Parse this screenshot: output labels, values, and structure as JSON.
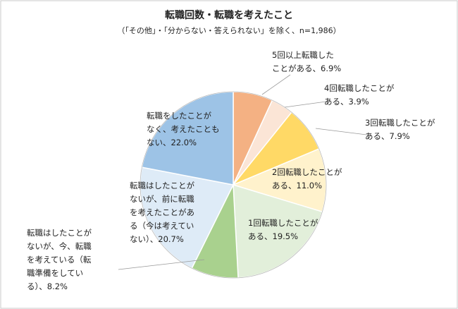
{
  "chart_data": {
    "type": "pie",
    "title": "転職回数・転職を考えたこと",
    "subtitle": "（「その他」・「分からない・答えられない」を除く、n=1,986）",
    "categories": [
      [
        "5回以上転職した",
        "ことがある、"
      ],
      [
        "4回転職したことが",
        "ある、"
      ],
      [
        "3回転職したことが",
        "ある、"
      ],
      [
        "2回転職したことが",
        "ある、"
      ],
      [
        "1回転職したことが",
        "ある、"
      ],
      [
        "転職はしたことが",
        "ないが、今、転職",
        "を考えている（転",
        "職準備をしてい",
        "る）、"
      ],
      [
        "転職はしたことが",
        "ないが、前に転職",
        "を考えたことがあ",
        "る（今は考えてい",
        "ない）、"
      ],
      [
        "転職をしたことが",
        "なく、考えたことも",
        "ない、"
      ]
    ],
    "values": [
      6.9,
      3.9,
      7.9,
      11.0,
      19.5,
      8.2,
      20.7,
      22.0
    ],
    "value_labels": [
      "6.9%",
      "3.9%",
      "7.9%",
      "11.0%",
      "19.5%",
      "8.2%",
      "20.7%",
      "22.0%"
    ],
    "colors": [
      "#f4b183",
      "#fbe5d6",
      "#ffd966",
      "#fff2cc",
      "#e2efda",
      "#a9d18e",
      "#deebf7",
      "#9dc3e6"
    ]
  }
}
